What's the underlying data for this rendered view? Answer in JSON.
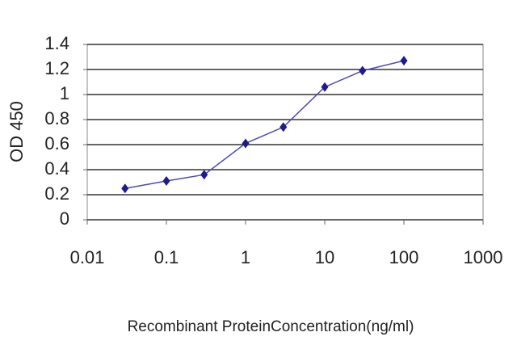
{
  "chart_data": {
    "type": "line",
    "x_label": "Recombinant ProteinConcentration(ng/ml)",
    "y_label": "OD 450",
    "xscale": "log",
    "x": [
      0.03,
      0.1,
      0.3,
      1,
      3,
      10,
      30,
      100
    ],
    "series": [
      {
        "color": "#1c1c8c",
        "values": [
          0.25,
          0.31,
          0.36,
          0.61,
          0.74,
          1.06,
          1.19,
          1.27
        ]
      }
    ],
    "xlim": [
      0.01,
      1000
    ],
    "xticks": [
      0.01,
      0.1,
      1,
      10,
      100,
      1000
    ],
    "ylim": [
      0,
      1.4
    ],
    "yticks": [
      0,
      0.2,
      0.4,
      0.6,
      0.8,
      1,
      1.2,
      1.4
    ],
    "grid": true
  }
}
